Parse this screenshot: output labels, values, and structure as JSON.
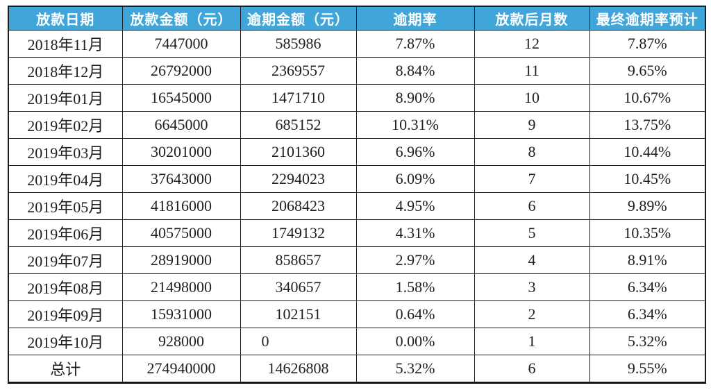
{
  "colors": {
    "header_bg": "#40a6d9",
    "header_text": "#ffffff",
    "body_text": "#1e1e1e",
    "border": "#1c1c1c"
  },
  "chart_data": {
    "type": "table",
    "columns": [
      "放款日期",
      "放款金额（元）",
      "逾期金额（元）",
      "逾期率",
      "放款后月数",
      "最终逾期率预计"
    ],
    "rows": [
      [
        "2018年11月",
        "7447000",
        "585986",
        "7.87%",
        "12",
        "7.87%"
      ],
      [
        "2018年12月",
        "26792000",
        "2369557",
        "8.84%",
        "11",
        "9.65%"
      ],
      [
        "2019年01月",
        "16545000",
        "1471710",
        "8.90%",
        "10",
        "10.67%"
      ],
      [
        "2019年02月",
        "6645000",
        "685152",
        "10.31%",
        "9",
        "13.75%"
      ],
      [
        "2019年03月",
        "30201000",
        "2101360",
        "6.96%",
        "8",
        "10.44%"
      ],
      [
        "2019年04月",
        "37643000",
        "2294023",
        "6.09%",
        "7",
        "10.45%"
      ],
      [
        "2019年05月",
        "41816000",
        "2068423",
        "4.95%",
        "6",
        "9.89%"
      ],
      [
        "2019年06月",
        "40575000",
        "1749132",
        "4.31%",
        "5",
        "10.35%"
      ],
      [
        "2019年07月",
        "28919000",
        "858657",
        "2.97%",
        "4",
        "8.91%"
      ],
      [
        "2019年08月",
        "21498000",
        "340657",
        "1.58%",
        "3",
        "6.34%"
      ],
      [
        "2019年09月",
        "15931000",
        "102151",
        "0.64%",
        "2",
        "6.34%"
      ],
      [
        "2019年10月",
        "928000",
        "0",
        "0.00%",
        "1",
        "5.32%"
      ],
      [
        "总计",
        "274940000",
        "14626808",
        "5.32%",
        "6",
        "9.55%"
      ]
    ],
    "total_row_label": "总计"
  }
}
